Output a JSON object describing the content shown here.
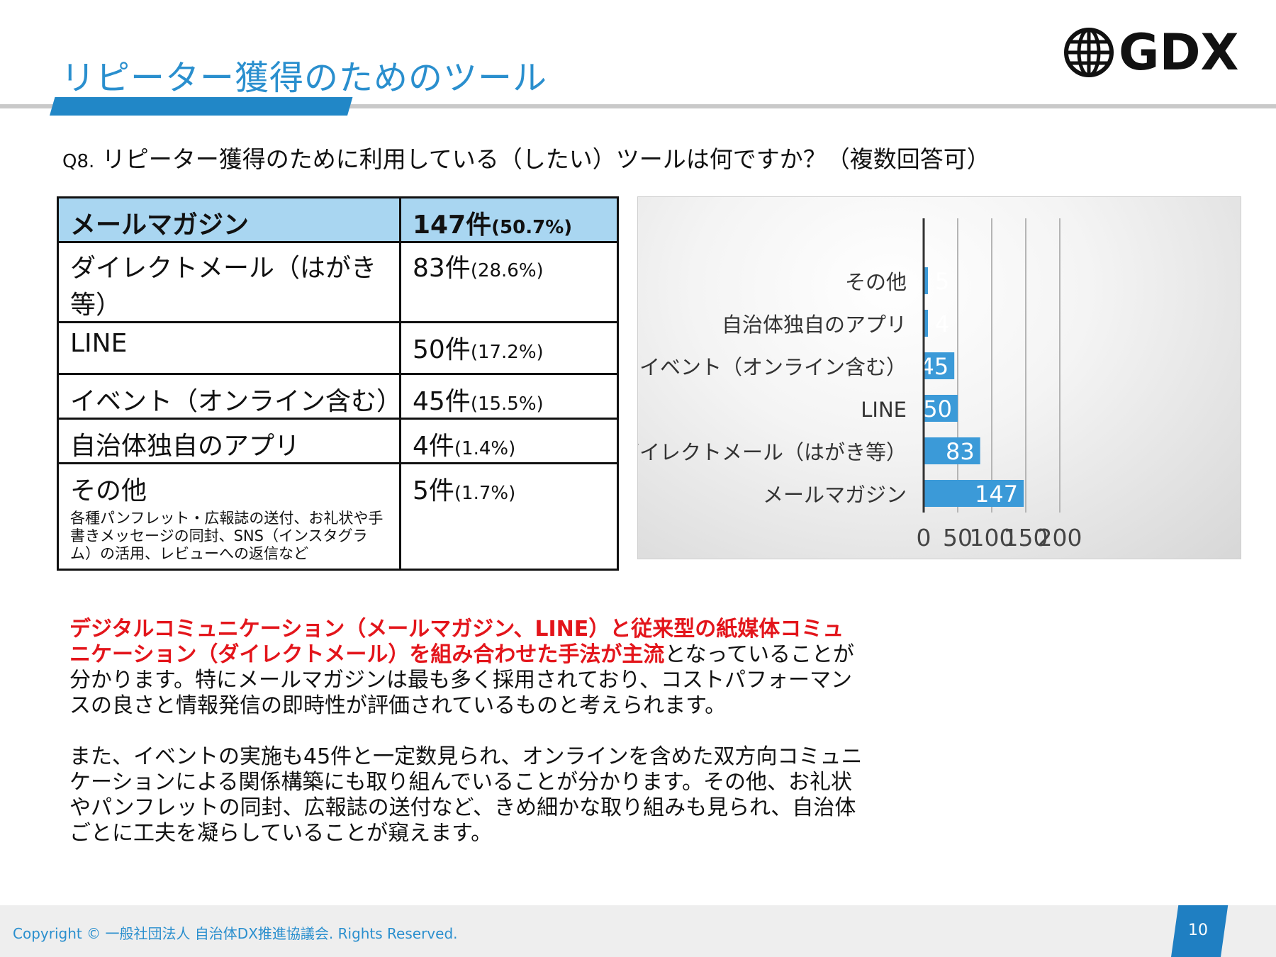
{
  "header": {
    "title": "リピーター獲得のためのツール",
    "logo_text": "GDX"
  },
  "question": {
    "number": "Q8.",
    "text": "リピーター獲得のために利用している（したい）ツールは何ですか？（複数回答可）"
  },
  "table": {
    "rows": [
      {
        "name": "メールマガジン",
        "count": "147件",
        "pct": "(50.7%)",
        "highlight": true
      },
      {
        "name": "ダイレクトメール（はがき等）",
        "count": "83件",
        "pct": "(28.6%)"
      },
      {
        "name": "LINE",
        "count": "50件",
        "pct": "(17.2%)"
      },
      {
        "name": "イベント（オンライン含む）",
        "count": "45件",
        "pct": "(15.5%)"
      },
      {
        "name": "自治体独自のアプリ",
        "count": "4件",
        "pct": "(1.4%)"
      },
      {
        "name": "その他",
        "count": "5件",
        "pct": "(1.7%)",
        "note": "各種パンフレット・広報誌の送付、お礼状や手書きメッセージの同封、SNS（インスタグラム）の活用、レビューへの返信など"
      }
    ]
  },
  "chart_data": {
    "type": "bar",
    "orientation": "horizontal",
    "categories": [
      "その他",
      "自治体独自のアプリ",
      "イベント（オンライン含む）",
      "LINE",
      "ダイレクトメール（はがき等）",
      "メールマガジン"
    ],
    "values": [
      5,
      4,
      45,
      50,
      83,
      147
    ],
    "xlim": [
      0,
      200
    ],
    "xticks": [
      0,
      50,
      100,
      150,
      200
    ],
    "grid": true,
    "bar_color": "#3b9ad8",
    "data_labels": true
  },
  "body": {
    "p1_red": "デジタルコミュニケーション（メールマガジン、LINE）と従来型の紙媒体コミュニケーション（ダイレクトメール）を組み合わせた手法が主流",
    "p1_rest": "となっていることが分かります。特にメールマガジンは最も多く採用されており、コストパフォーマンスの良さと情報発信の即時性が評価されているものと考えられます。",
    "p2": "また、イベントの実施も45件と一定数見られ、オンラインを含めた双方向コミュニケーションによる関係構築にも取り組んでいることが分かります。その他、お礼状やパンフレットの同封、広報誌の送付など、きめ細かな取り組みも見られ、自治体ごとに工夫を凝らしていることが窺えます。"
  },
  "footer": {
    "copyright": "Copyright © 一般社団法人 自治体DX推進協議会. Rights Reserved.",
    "page": "10"
  },
  "colors": {
    "title": "#2a8fce",
    "accent_bar": "#2187c7",
    "table_header": "#a9d6f1",
    "emphasis": "#e3151b"
  }
}
